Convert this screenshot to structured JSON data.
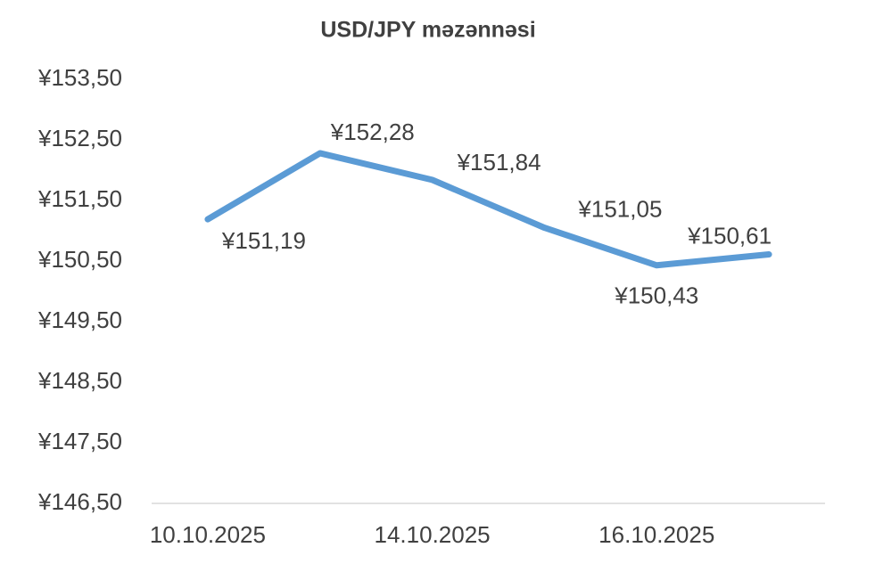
{
  "chart_data": {
    "type": "line",
    "title": "USD/JPY məzənnəsi",
    "categories": [
      "10.10.2025",
      null,
      "14.10.2025",
      null,
      "16.10.2025",
      null
    ],
    "series": [
      {
        "name": "USD/JPY",
        "color": "#5b9bd5",
        "values": [
          151.19,
          152.28,
          151.84,
          151.05,
          150.43,
          150.61
        ],
        "value_labels": [
          "¥151,19",
          "¥152,28",
          "¥151,84",
          "¥151,05",
          "¥150,43",
          "¥150,61"
        ]
      }
    ],
    "ylim": [
      146.5,
      153.5
    ],
    "yticks": [
      {
        "value": 146.5,
        "label": "¥146,50"
      },
      {
        "value": 147.5,
        "label": "¥147,50"
      },
      {
        "value": 148.5,
        "label": "¥148,50"
      },
      {
        "value": 149.5,
        "label": "¥149,50"
      },
      {
        "value": 150.5,
        "label": "¥150,50"
      },
      {
        "value": 151.5,
        "label": "¥151,50"
      },
      {
        "value": 152.5,
        "label": "¥152,50"
      },
      {
        "value": 153.5,
        "label": "¥153,50"
      }
    ],
    "grid": false
  }
}
